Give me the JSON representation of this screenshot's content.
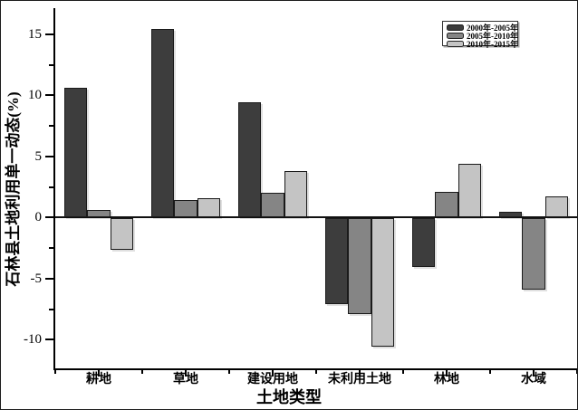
{
  "figure": {
    "background": "#ffffff",
    "border_color": "#1c1c1c"
  },
  "chart_data": {
    "type": "bar",
    "title": "",
    "xlabel": "土地类型",
    "ylabel": "石林县土地利用单一动态(%)",
    "categories": [
      "耕地",
      "草地",
      "建设用地",
      "未利用土地",
      "林地",
      "水域"
    ],
    "series": [
      {
        "name": "2000年-2005年",
        "color": "#3d3d3d",
        "values": [
          10.6,
          15.4,
          9.4,
          -7.0,
          -4.0,
          0.5
        ]
      },
      {
        "name": "2005年-2010年",
        "color": "#858585",
        "values": [
          0.6,
          1.4,
          2.0,
          -7.8,
          2.1,
          -5.8
        ]
      },
      {
        "name": "2010年-2015年",
        "color": "#c4c4c4",
        "values": [
          -2.6,
          1.6,
          3.8,
          -10.5,
          4.4,
          1.7
        ]
      }
    ],
    "ylim": [
      -12.5,
      17.1
    ],
    "yticks_major": [
      15,
      10,
      5,
      0,
      -5,
      -10
    ],
    "yticks_minor": [
      12.5,
      7.5,
      2.5,
      -2.5,
      -7.5
    ],
    "grid": false,
    "zero_line": true,
    "legend_position": "top-right"
  }
}
